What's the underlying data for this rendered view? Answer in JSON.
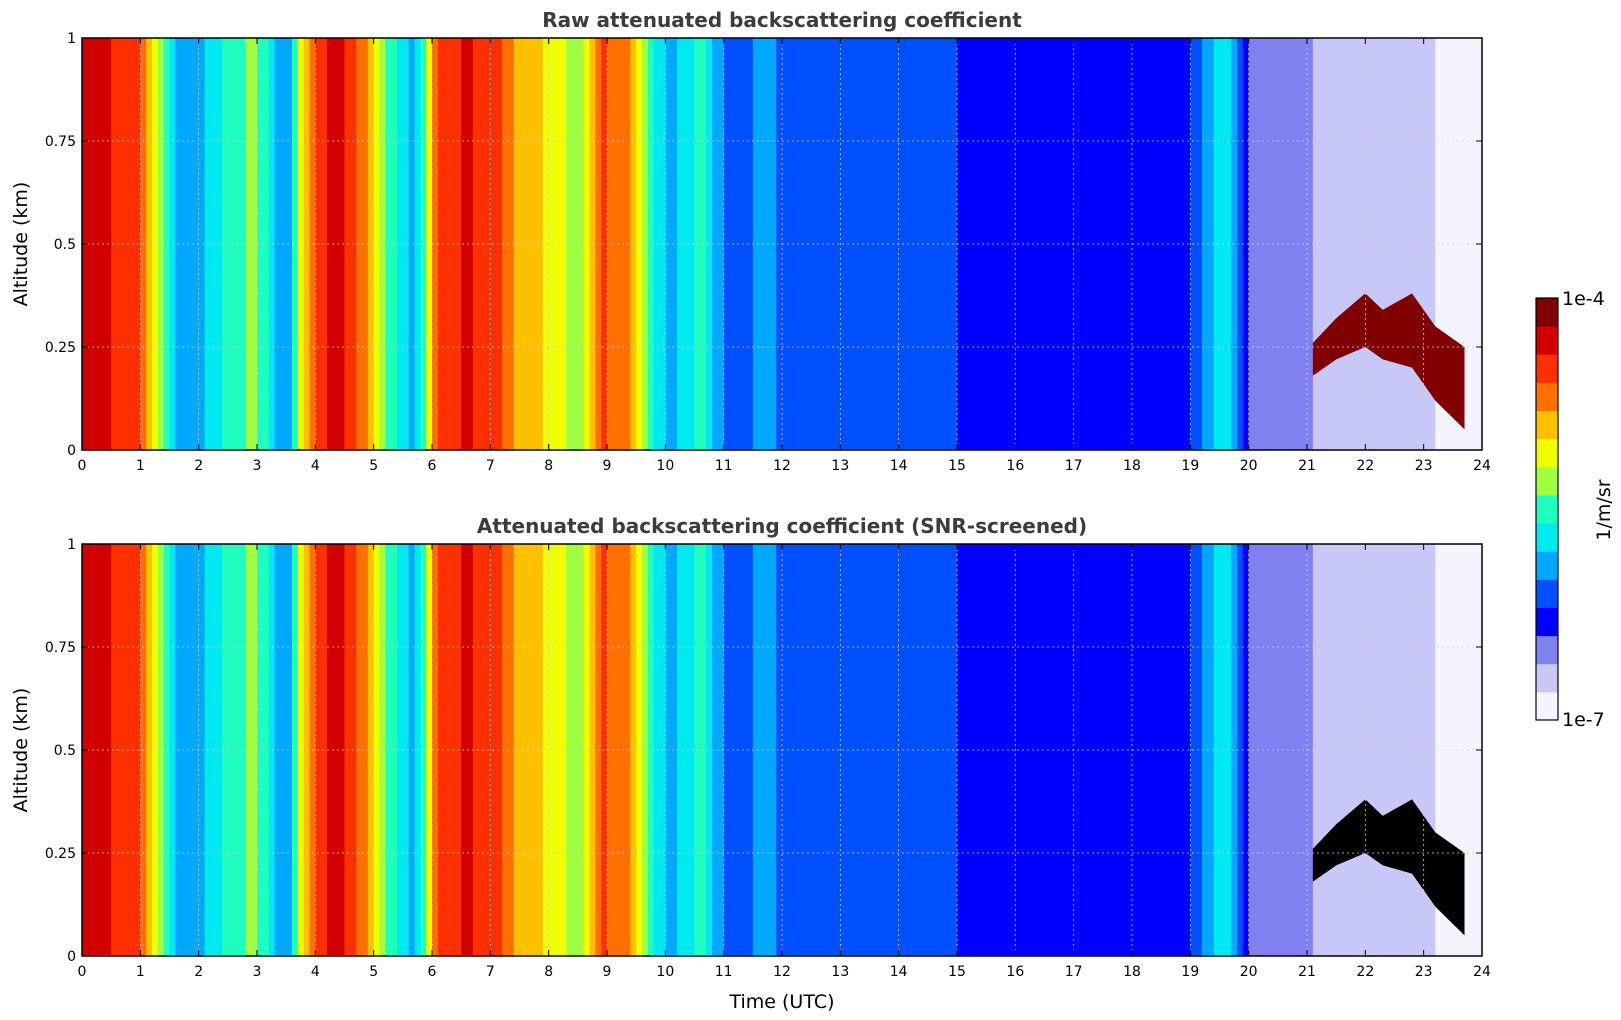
{
  "colormap": [
    "#f4f4ff",
    "#c8c8f8",
    "#8080f0",
    "#0000ff",
    "#0050ff",
    "#00a8ff",
    "#00e8f0",
    "#20ffc0",
    "#a0ff40",
    "#f0ff00",
    "#ffc000",
    "#ff7000",
    "#ff3000",
    "#d00000",
    "#800000"
  ],
  "screened_high_color": "#000000",
  "screened_missing_color": "#ffffff",
  "colorbar": {
    "label": "1/m/sr",
    "max_label": "1e-4",
    "min_label": "1e-7",
    "scale": "log"
  },
  "chart_data": [
    {
      "type": "heatmap",
      "title": "Raw attenuated backscattering coefficient",
      "xlabel": "",
      "ylabel": "Altitude (km)",
      "xlim": [
        0,
        24
      ],
      "ylim": [
        0,
        1
      ],
      "x_ticks": [
        "0",
        "1",
        "2",
        "3",
        "4",
        "5",
        "6",
        "7",
        "8",
        "9",
        "10",
        "11",
        "12",
        "13",
        "14",
        "15",
        "16",
        "17",
        "18",
        "19",
        "20",
        "21",
        "22",
        "23",
        "24"
      ],
      "y_ticks": [
        "0",
        "0.25",
        "0.5",
        "0.75",
        "1"
      ],
      "grid": true,
      "value_scale": "log10 of 1/m/sr, range -7 to -4",
      "column_profile_x": [
        0.0,
        0.4,
        0.9,
        1.3,
        1.7,
        2.3,
        2.9,
        3.5,
        3.9,
        4.3,
        4.8,
        5.2,
        5.7,
        6.1,
        6.6,
        7.0,
        7.5,
        8.0,
        8.5,
        8.9,
        9.3,
        9.8,
        10.1,
        10.6,
        10.9,
        11.3,
        11.7,
        12.1,
        12.6,
        13.0,
        14.0,
        16.0,
        18.0,
        19.0,
        19.6,
        20.0,
        20.5,
        21.0,
        21.3,
        21.8,
        22.3,
        22.8,
        23.2,
        23.6,
        23.8,
        24.0
      ],
      "column_profile_log10": [
        -4.3,
        -4.3,
        -4.4,
        -5.2,
        -6.0,
        -5.7,
        -5.3,
        -6.0,
        -4.6,
        -4.2,
        -4.6,
        -5.4,
        -6.0,
        -4.5,
        -4.3,
        -4.4,
        -4.8,
        -5.0,
        -5.3,
        -4.5,
        -4.6,
        -5.6,
        -5.9,
        -5.5,
        -6.0,
        -6.2,
        -5.8,
        -6.2,
        -6.2,
        -6.2,
        -6.2,
        -6.3,
        -6.3,
        -6.3,
        -5.6,
        -6.5,
        -6.5,
        -6.6,
        -6.9,
        -6.8,
        -6.7,
        -6.8,
        -6.9,
        -7.0,
        -7.0,
        -7.0
      ],
      "low_cloud_layer": {
        "x": [
          21.1,
          21.5,
          22.0,
          22.3,
          22.8,
          23.2,
          23.7
        ],
        "base_km": [
          0.18,
          0.22,
          0.25,
          0.22,
          0.2,
          0.12,
          0.05
        ],
        "top_km": [
          0.26,
          0.32,
          0.38,
          0.34,
          0.38,
          0.3,
          0.25
        ],
        "log10": -4.0
      },
      "screened": false
    },
    {
      "type": "heatmap",
      "title": "Attenuated backscattering coefficient (SNR-screened)",
      "xlabel": "Time (UTC)",
      "ylabel": "Altitude (km)",
      "xlim": [
        0,
        24
      ],
      "ylim": [
        0,
        1
      ],
      "x_ticks": [
        "0",
        "1",
        "2",
        "3",
        "4",
        "5",
        "6",
        "7",
        "8",
        "9",
        "10",
        "11",
        "12",
        "13",
        "14",
        "15",
        "16",
        "17",
        "18",
        "19",
        "20",
        "21",
        "22",
        "23",
        "24"
      ],
      "y_ticks": [
        "0",
        "0.25",
        "0.5",
        "0.75",
        "1"
      ],
      "grid": true,
      "value_scale": "log10 of 1/m/sr, range -7 to -4",
      "column_profile_x": [
        0.0,
        0.4,
        0.9,
        1.3,
        1.7,
        2.3,
        2.9,
        3.5,
        3.9,
        4.3,
        4.8,
        5.2,
        5.7,
        6.1,
        6.6,
        7.0,
        7.5,
        8.0,
        8.5,
        8.9,
        9.3,
        9.8,
        10.1,
        10.6,
        10.9,
        11.3,
        11.7,
        12.1,
        12.6,
        13.0,
        14.0,
        16.0,
        18.0,
        19.0,
        19.6,
        20.0,
        20.5,
        21.0,
        21.3,
        21.8,
        22.3,
        22.8,
        23.2,
        23.6,
        23.8,
        24.0
      ],
      "column_profile_log10": [
        -4.3,
        -4.3,
        -4.4,
        -5.2,
        -6.0,
        -5.7,
        -5.3,
        -6.0,
        -4.6,
        -4.2,
        -4.6,
        -5.4,
        -6.0,
        -4.5,
        -4.3,
        -4.4,
        -4.8,
        -5.0,
        -5.3,
        -4.5,
        -4.6,
        -5.6,
        -5.9,
        -5.5,
        -6.0,
        -6.2,
        -5.8,
        -6.2,
        -6.2,
        -6.2,
        -6.2,
        -6.3,
        -6.3,
        -6.3,
        -5.6,
        -6.5,
        -6.5,
        -6.6,
        -6.9,
        -6.8,
        -6.7,
        -6.8,
        -6.9,
        -7.0,
        -7.0,
        -7.0
      ],
      "low_cloud_layer": {
        "x": [
          21.1,
          21.5,
          22.0,
          22.3,
          22.8,
          23.2,
          23.7
        ],
        "base_km": [
          0.18,
          0.22,
          0.25,
          0.22,
          0.2,
          0.12,
          0.05
        ],
        "top_km": [
          0.26,
          0.32,
          0.38,
          0.34,
          0.38,
          0.3,
          0.25
        ],
        "log10": -4.0
      },
      "screened": true
    }
  ]
}
